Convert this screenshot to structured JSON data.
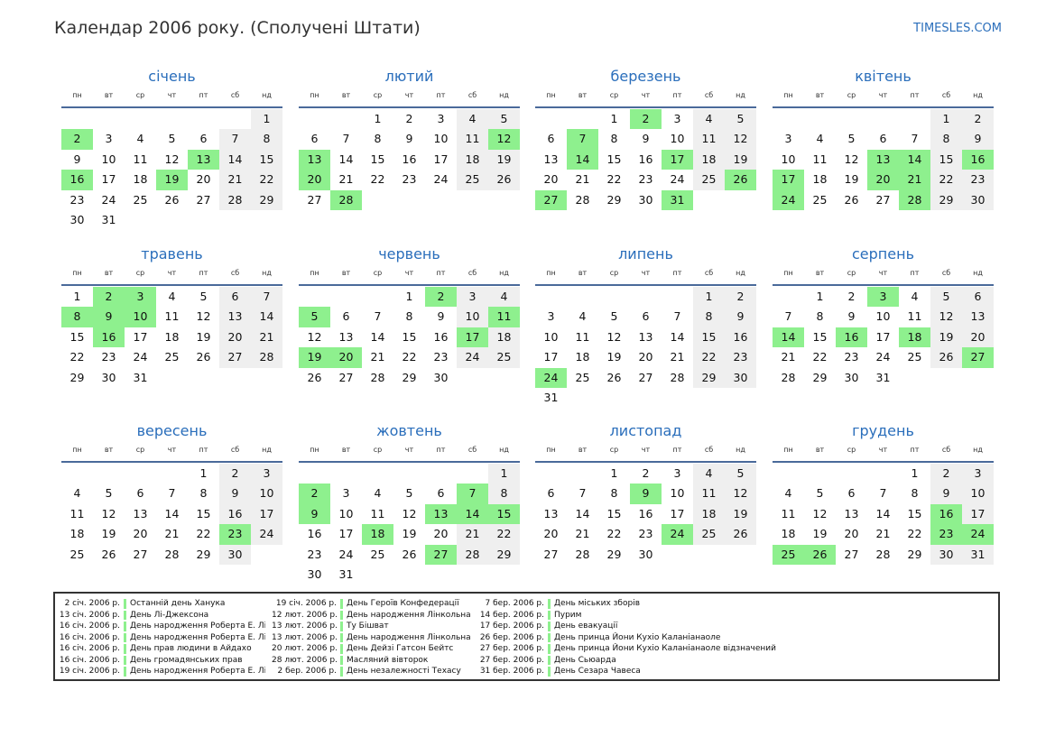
{
  "header": {
    "title": "Календар 2006 року. (Сполучені Штати)",
    "site": "TIMESLES.COM"
  },
  "weekdays": [
    "пн",
    "вт",
    "ср",
    "чт",
    "пт",
    "сб",
    "нд"
  ],
  "months": [
    {
      "name": "січень",
      "weeks": [
        [
          "",
          "",
          "",
          "",
          "",
          "",
          "1"
        ],
        [
          "2",
          "3",
          "4",
          "5",
          "6",
          "7",
          "8"
        ],
        [
          "9",
          "10",
          "11",
          "12",
          "13",
          "14",
          "15"
        ],
        [
          "16",
          "17",
          "18",
          "19",
          "20",
          "21",
          "22"
        ],
        [
          "23",
          "24",
          "25",
          "26",
          "27",
          "28",
          "29"
        ],
        [
          "30",
          "31",
          "",
          "",
          "",
          "",
          ""
        ]
      ],
      "holidays": [
        "2",
        "13",
        "16",
        "19"
      ]
    },
    {
      "name": "лютий",
      "weeks": [
        [
          "",
          "",
          "1",
          "2",
          "3",
          "4",
          "5"
        ],
        [
          "6",
          "7",
          "8",
          "9",
          "10",
          "11",
          "12"
        ],
        [
          "13",
          "14",
          "15",
          "16",
          "17",
          "18",
          "19"
        ],
        [
          "20",
          "21",
          "22",
          "23",
          "24",
          "25",
          "26"
        ],
        [
          "27",
          "28",
          "",
          "",
          "",
          "",
          ""
        ]
      ],
      "holidays": [
        "12",
        "13",
        "20",
        "28"
      ]
    },
    {
      "name": "березень",
      "weeks": [
        [
          "",
          "",
          "1",
          "2",
          "3",
          "4",
          "5"
        ],
        [
          "6",
          "7",
          "8",
          "9",
          "10",
          "11",
          "12"
        ],
        [
          "13",
          "14",
          "15",
          "16",
          "17",
          "18",
          "19"
        ],
        [
          "20",
          "21",
          "22",
          "23",
          "24",
          "25",
          "26"
        ],
        [
          "27",
          "28",
          "29",
          "30",
          "31",
          "",
          ""
        ]
      ],
      "holidays": [
        "2",
        "7",
        "14",
        "17",
        "26",
        "27",
        "31"
      ]
    },
    {
      "name": "квітень",
      "weeks": [
        [
          "",
          "",
          "",
          "",
          "",
          "1",
          "2"
        ],
        [
          "3",
          "4",
          "5",
          "6",
          "7",
          "8",
          "9"
        ],
        [
          "10",
          "11",
          "12",
          "13",
          "14",
          "15",
          "16"
        ],
        [
          "17",
          "18",
          "19",
          "20",
          "21",
          "22",
          "23"
        ],
        [
          "24",
          "25",
          "26",
          "27",
          "28",
          "29",
          "30"
        ]
      ],
      "holidays": [
        "13",
        "14",
        "16",
        "17",
        "20",
        "21",
        "24",
        "28"
      ]
    },
    {
      "name": "травень",
      "weeks": [
        [
          "1",
          "2",
          "3",
          "4",
          "5",
          "6",
          "7"
        ],
        [
          "8",
          "9",
          "10",
          "11",
          "12",
          "13",
          "14"
        ],
        [
          "15",
          "16",
          "17",
          "18",
          "19",
          "20",
          "21"
        ],
        [
          "22",
          "23",
          "24",
          "25",
          "26",
          "27",
          "28"
        ],
        [
          "29",
          "30",
          "31",
          "",
          "",
          "",
          ""
        ]
      ],
      "holidays": [
        "2",
        "3",
        "8",
        "9",
        "10",
        "16"
      ]
    },
    {
      "name": "червень",
      "weeks": [
        [
          "",
          "",
          "",
          "1",
          "2",
          "3",
          "4"
        ],
        [
          "5",
          "6",
          "7",
          "8",
          "9",
          "10",
          "11"
        ],
        [
          "12",
          "13",
          "14",
          "15",
          "16",
          "17",
          "18"
        ],
        [
          "19",
          "20",
          "21",
          "22",
          "23",
          "24",
          "25"
        ],
        [
          "26",
          "27",
          "28",
          "29",
          "30",
          "",
          ""
        ]
      ],
      "holidays": [
        "2",
        "5",
        "11",
        "17",
        "19",
        "20"
      ]
    },
    {
      "name": "липень",
      "weeks": [
        [
          "",
          "",
          "",
          "",
          "",
          "1",
          "2"
        ],
        [
          "3",
          "4",
          "5",
          "6",
          "7",
          "8",
          "9"
        ],
        [
          "10",
          "11",
          "12",
          "13",
          "14",
          "15",
          "16"
        ],
        [
          "17",
          "18",
          "19",
          "20",
          "21",
          "22",
          "23"
        ],
        [
          "24",
          "25",
          "26",
          "27",
          "28",
          "29",
          "30"
        ],
        [
          "31",
          "",
          "",
          "",
          "",
          "",
          ""
        ]
      ],
      "holidays": [
        "24"
      ]
    },
    {
      "name": "серпень",
      "weeks": [
        [
          "",
          "1",
          "2",
          "3",
          "4",
          "5",
          "6"
        ],
        [
          "7",
          "8",
          "9",
          "10",
          "11",
          "12",
          "13"
        ],
        [
          "14",
          "15",
          "16",
          "17",
          "18",
          "19",
          "20"
        ],
        [
          "21",
          "22",
          "23",
          "24",
          "25",
          "26",
          "27"
        ],
        [
          "28",
          "29",
          "30",
          "31",
          "",
          "",
          ""
        ]
      ],
      "holidays": [
        "3",
        "14",
        "16",
        "18",
        "27"
      ]
    },
    {
      "name": "вересень",
      "weeks": [
        [
          "",
          "",
          "",
          "",
          "1",
          "2",
          "3"
        ],
        [
          "4",
          "5",
          "6",
          "7",
          "8",
          "9",
          "10"
        ],
        [
          "11",
          "12",
          "13",
          "14",
          "15",
          "16",
          "17"
        ],
        [
          "18",
          "19",
          "20",
          "21",
          "22",
          "23",
          "24"
        ],
        [
          "25",
          "26",
          "27",
          "28",
          "29",
          "30",
          ""
        ]
      ],
      "holidays": [
        "23"
      ]
    },
    {
      "name": "жовтень",
      "weeks": [
        [
          "",
          "",
          "",
          "",
          "",
          "",
          "1"
        ],
        [
          "2",
          "3",
          "4",
          "5",
          "6",
          "7",
          "8"
        ],
        [
          "9",
          "10",
          "11",
          "12",
          "13",
          "14",
          "15"
        ],
        [
          "16",
          "17",
          "18",
          "19",
          "20",
          "21",
          "22"
        ],
        [
          "23",
          "24",
          "25",
          "26",
          "27",
          "28",
          "29"
        ],
        [
          "30",
          "31",
          "",
          "",
          "",
          "",
          ""
        ]
      ],
      "holidays": [
        "2",
        "7",
        "9",
        "13",
        "14",
        "15",
        "18",
        "27"
      ]
    },
    {
      "name": "листопад",
      "weeks": [
        [
          "",
          "",
          "1",
          "2",
          "3",
          "4",
          "5"
        ],
        [
          "6",
          "7",
          "8",
          "9",
          "10",
          "11",
          "12"
        ],
        [
          "13",
          "14",
          "15",
          "16",
          "17",
          "18",
          "19"
        ],
        [
          "20",
          "21",
          "22",
          "23",
          "24",
          "25",
          "26"
        ],
        [
          "27",
          "28",
          "29",
          "30",
          "",
          "",
          ""
        ]
      ],
      "holidays": [
        "9",
        "24"
      ]
    },
    {
      "name": "грудень",
      "weeks": [
        [
          "",
          "",
          "",
          "",
          "1",
          "2",
          "3"
        ],
        [
          "4",
          "5",
          "6",
          "7",
          "8",
          "9",
          "10"
        ],
        [
          "11",
          "12",
          "13",
          "14",
          "15",
          "16",
          "17"
        ],
        [
          "18",
          "19",
          "20",
          "21",
          "22",
          "23",
          "24"
        ],
        [
          "25",
          "26",
          "27",
          "28",
          "29",
          "30",
          "31"
        ]
      ],
      "holidays": [
        "16",
        "23",
        "24",
        "25",
        "26"
      ]
    }
  ],
  "legend": [
    [
      {
        "date": "2 січ. 2006 р.",
        "name": "Останній день Ханука"
      },
      {
        "date": "13 січ. 2006 р.",
        "name": "День Лі-Джексона"
      },
      {
        "date": "16 січ. 2006 р.",
        "name": "День народження Роберта Е. Лі"
      },
      {
        "date": "16 січ. 2006 р.",
        "name": "День народження Роберта Е. Лі"
      },
      {
        "date": "16 січ. 2006 р.",
        "name": "День прав людини в Айдахо"
      },
      {
        "date": "16 січ. 2006 р.",
        "name": "День громадянських прав"
      },
      {
        "date": "19 січ. 2006 р.",
        "name": "День народження Роберта Е. Лі"
      }
    ],
    [
      {
        "date": "19 січ. 2006 р.",
        "name": "День Героїв Конфедерації"
      },
      {
        "date": "12 лют. 2006 р.",
        "name": "День народження Лінкольна"
      },
      {
        "date": "13 лют. 2006 р.",
        "name": "Ту Бішват"
      },
      {
        "date": "13 лют. 2006 р.",
        "name": "День народження Лінкольна"
      },
      {
        "date": "20 лют. 2006 р.",
        "name": "День Дейзі Гатсон Бейтс"
      },
      {
        "date": "28 лют. 2006 р.",
        "name": "Масляний вівторок"
      },
      {
        "date": "2 бер. 2006 р.",
        "name": "День незалежності Техасу"
      }
    ],
    [
      {
        "date": "7 бер. 2006 р.",
        "name": "День міських зборів"
      },
      {
        "date": "14 бер. 2006 р.",
        "name": "Пурим"
      },
      {
        "date": "17 бер. 2006 р.",
        "name": "День евакуації"
      },
      {
        "date": "26 бер. 2006 р.",
        "name": "День принца Йони Кухіо Каланіанаоле"
      },
      {
        "date": "27 бер. 2006 р.",
        "name": "День принца Йони Кухіо Каланіанаоле відзначений"
      },
      {
        "date": "27 бер. 2006 р.",
        "name": "День Сьюарда"
      },
      {
        "date": "31 бер. 2006 р.",
        "name": "День Сезара Чавеса"
      }
    ]
  ]
}
